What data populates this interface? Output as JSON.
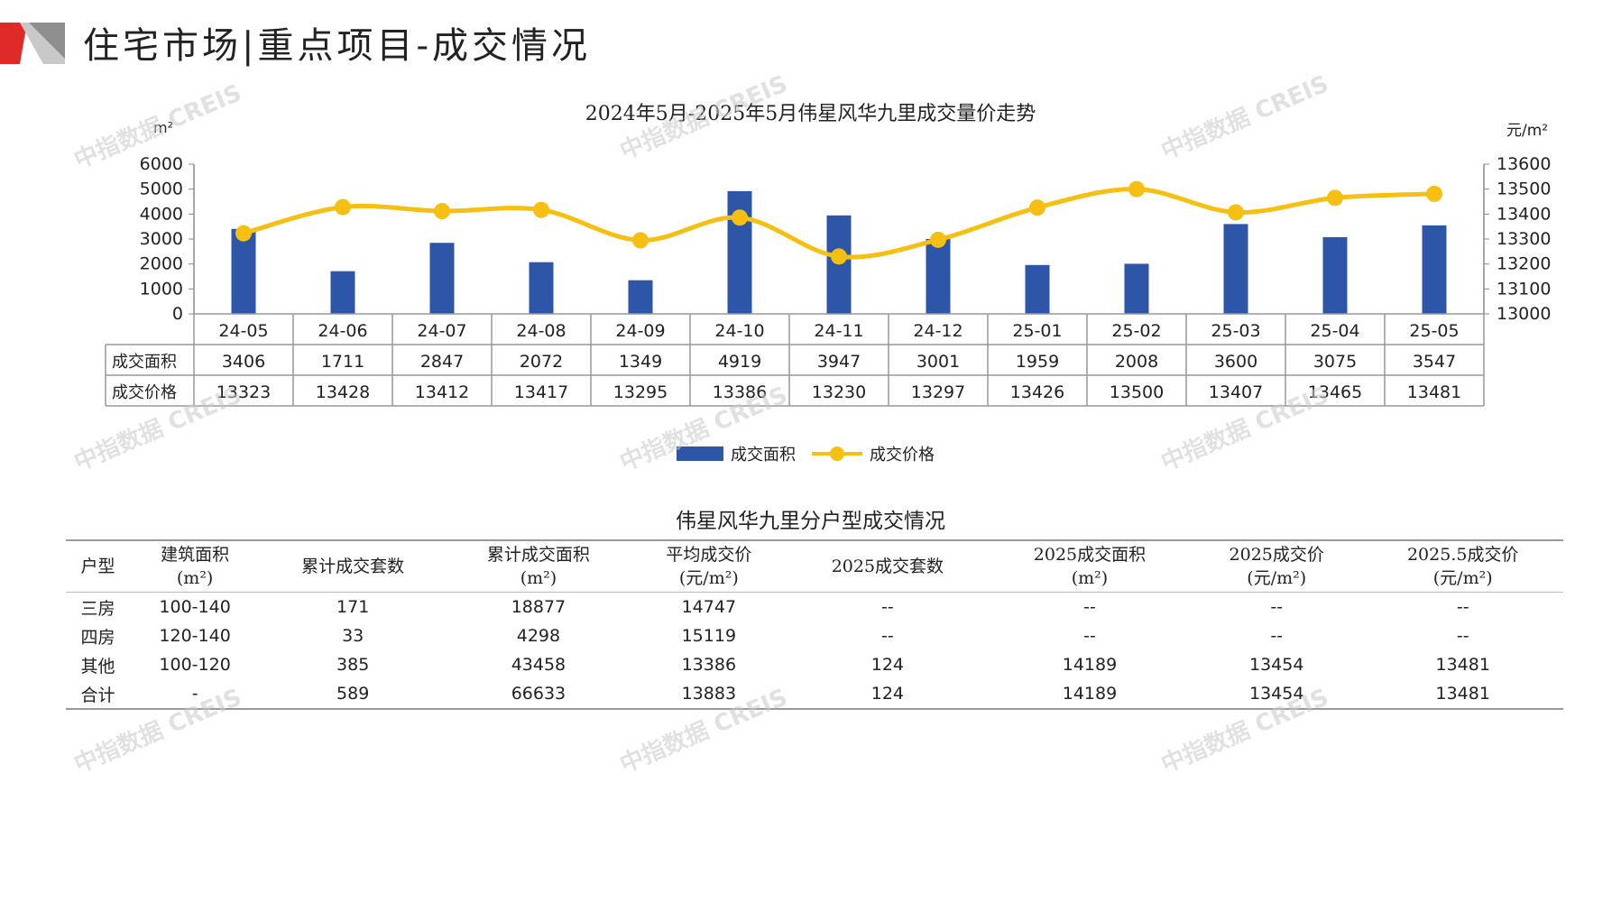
{
  "page_title": "住宅市场|重点项目-成交情况",
  "watermark": "中指数据 CREIS",
  "colors": {
    "bar": "#2e56a8",
    "line": "#f5c012",
    "accent_red": "#e02a27",
    "logo_gray": "#9e9e9e"
  },
  "chart_data": {
    "type": "bar+line",
    "title": "2024年5月-2025年5月伟星风华九里成交量价走势",
    "y_left_unit": "m²",
    "y_right_unit": "元/m²",
    "y_left_ticks": [
      "6000",
      "5000",
      "4000",
      "3000",
      "2000",
      "1000",
      "0"
    ],
    "y_right_ticks": [
      "13600",
      "13500",
      "13400",
      "13300",
      "13200",
      "13100",
      "13000"
    ],
    "ylim_left": [
      0,
      6000
    ],
    "ylim_right": [
      13000,
      13600
    ],
    "categories": [
      "24-05",
      "24-06",
      "24-07",
      "24-08",
      "24-09",
      "24-10",
      "24-11",
      "24-12",
      "25-01",
      "25-02",
      "25-03",
      "25-04",
      "25-05"
    ],
    "series": [
      {
        "name": "成交面积",
        "kind": "bar",
        "axis": "left",
        "values": [
          3406,
          1711,
          2847,
          2072,
          1349,
          4919,
          3947,
          3001,
          1959,
          2008,
          3600,
          3075,
          3547
        ]
      },
      {
        "name": "成交价格",
        "kind": "line",
        "axis": "right",
        "values": [
          13323,
          13428,
          13412,
          13417,
          13295,
          13386,
          13230,
          13297,
          13426,
          13500,
          13407,
          13465,
          13481
        ]
      }
    ],
    "legend_placement": "bottom"
  },
  "table": {
    "title": "伟星风华九里分户型成交情况",
    "headers": [
      [
        "户型"
      ],
      [
        "建筑面积",
        "(m²)"
      ],
      [
        "累计成交套数"
      ],
      [
        "累计成交面积",
        "(m²)"
      ],
      [
        "平均成交价",
        "(元/m²)"
      ],
      [
        "2025成交套数"
      ],
      [
        "2025成交面积",
        "(m²)"
      ],
      [
        "2025成交价",
        "(元/m²)"
      ],
      [
        "2025.5成交价",
        "(元/m²)"
      ]
    ],
    "rows": [
      [
        "三房",
        "100-140",
        "171",
        "18877",
        "14747",
        "--",
        "--",
        "--",
        "--"
      ],
      [
        "四房",
        "120-140",
        "33",
        "4298",
        "15119",
        "--",
        "--",
        "--",
        "--"
      ],
      [
        "其他",
        "100-120",
        "385",
        "43458",
        "13386",
        "124",
        "14189",
        "13454",
        "13481"
      ],
      [
        "合计",
        "-",
        "589",
        "66633",
        "13883",
        "124",
        "14189",
        "13454",
        "13481"
      ]
    ]
  }
}
